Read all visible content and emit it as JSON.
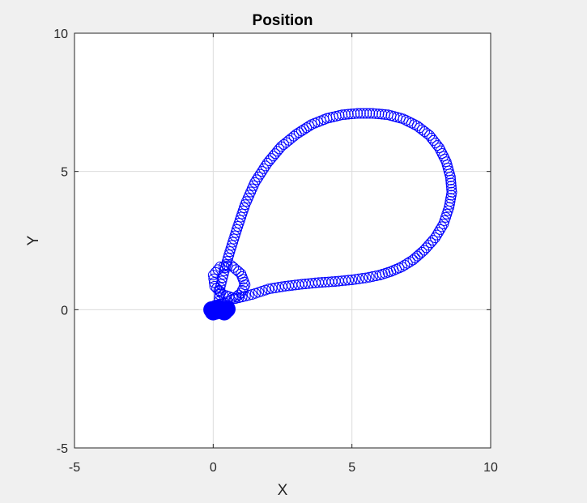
{
  "chart_data": {
    "type": "scatter",
    "title": "Position",
    "xlabel": "X",
    "ylabel": "Y",
    "xlim": [
      -5,
      10
    ],
    "ylim": [
      -5,
      10
    ],
    "xticks": [
      -5,
      0,
      5,
      10
    ],
    "yticks": [
      -5,
      0,
      5,
      10
    ],
    "xtick_labels": [
      "-5",
      "0",
      "5",
      "10"
    ],
    "ytick_labels": [
      "-5",
      "0",
      "5",
      "10"
    ],
    "grid": true,
    "marker": "circle-open",
    "marker_color": "#0000ff",
    "series": [
      {
        "points": [
          [
            0.0,
            0.0
          ],
          [
            0.15,
            0.02
          ],
          [
            0.3,
            0.05
          ],
          [
            0.45,
            0.08
          ],
          [
            0.6,
            0.03
          ],
          [
            0.35,
            -0.05
          ],
          [
            0.1,
            -0.02
          ],
          [
            -0.15,
            0.0
          ],
          [
            0.05,
            0.15
          ],
          [
            0.4,
            0.25
          ],
          [
            0.75,
            0.4
          ],
          [
            1.0,
            0.6
          ],
          [
            1.15,
            0.9
          ],
          [
            1.0,
            1.3
          ],
          [
            0.65,
            1.6
          ],
          [
            0.25,
            1.55
          ],
          [
            0.0,
            1.25
          ],
          [
            0.05,
            0.85
          ],
          [
            0.35,
            0.55
          ],
          [
            0.8,
            0.4
          ],
          [
            1.4,
            0.55
          ],
          [
            2.0,
            0.75
          ],
          [
            2.6,
            0.85
          ],
          [
            3.2,
            0.92
          ],
          [
            3.8,
            0.98
          ],
          [
            4.4,
            1.02
          ],
          [
            5.0,
            1.08
          ],
          [
            5.5,
            1.15
          ],
          [
            6.0,
            1.25
          ],
          [
            6.4,
            1.38
          ],
          [
            6.8,
            1.55
          ],
          [
            7.2,
            1.8
          ],
          [
            7.6,
            2.15
          ],
          [
            8.0,
            2.6
          ],
          [
            8.3,
            3.1
          ],
          [
            8.5,
            3.7
          ],
          [
            8.6,
            4.25
          ],
          [
            8.55,
            4.8
          ],
          [
            8.4,
            5.35
          ],
          [
            8.15,
            5.85
          ],
          [
            7.8,
            6.3
          ],
          [
            7.35,
            6.65
          ],
          [
            6.85,
            6.9
          ],
          [
            6.3,
            7.05
          ],
          [
            5.75,
            7.1
          ],
          [
            5.2,
            7.1
          ],
          [
            4.65,
            7.05
          ],
          [
            4.1,
            6.92
          ],
          [
            3.55,
            6.7
          ],
          [
            3.0,
            6.35
          ],
          [
            2.45,
            5.9
          ],
          [
            1.95,
            5.3
          ],
          [
            1.5,
            4.6
          ],
          [
            1.15,
            3.8
          ],
          [
            0.85,
            2.9
          ],
          [
            0.6,
            2.1
          ],
          [
            0.4,
            1.4
          ],
          [
            0.25,
            0.8
          ],
          [
            0.2,
            0.3
          ],
          [
            0.3,
            0.0
          ]
        ]
      }
    ]
  }
}
